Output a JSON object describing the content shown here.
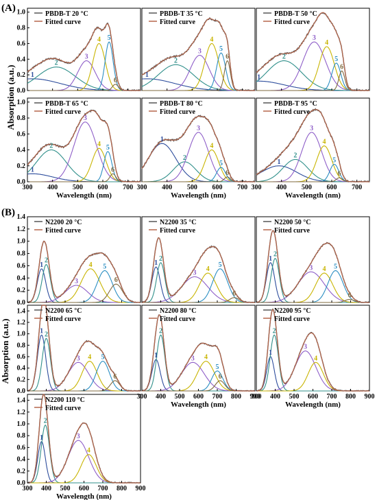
{
  "figure": {
    "section_a_label": "(A)",
    "section_b_label": "(B)",
    "ylabel": "Absorption (a.u.)",
    "xlabel": "Wavelength (nm)",
    "fitted_label": "Fitted curve",
    "colors": {
      "measured": "#555555",
      "fitted": "#b5654a",
      "peak1": "#2c4c9c",
      "peak2": "#2f8f8a",
      "peak3": "#8e5ec8",
      "peak4": "#c8b400",
      "peak5": "#2a8ec2",
      "peak6": "#7f6a3f"
    }
  },
  "chart_data": [
    {
      "type": "line",
      "group": "A",
      "title": "PBDB-T 20 °C",
      "xlabel": "Wavelength (nm)",
      "ylabel": "Absorption (a.u.)",
      "xlim": [
        300,
        750
      ],
      "ylim": [
        0,
        1.05
      ],
      "peaks": [
        {
          "label": "1",
          "center": 320,
          "amp": 0.15,
          "width": 110
        },
        {
          "label": "2",
          "center": 415,
          "amp": 0.3,
          "width": 75
        },
        {
          "label": "3",
          "center": 535,
          "amp": 0.38,
          "width": 35
        },
        {
          "label": "4",
          "center": 585,
          "amp": 0.6,
          "width": 25
        },
        {
          "label": "5",
          "center": 625,
          "amp": 0.62,
          "width": 16
        },
        {
          "label": "6",
          "center": 650,
          "amp": 0.08,
          "width": 12
        }
      ]
    },
    {
      "type": "line",
      "group": "A",
      "title": "PBDB-T 35 °C",
      "xlabel": "Wavelength (nm)",
      "ylabel": "Absorption (a.u.)",
      "xlim": [
        300,
        750
      ],
      "ylim": [
        0,
        1.05
      ],
      "peaks": [
        {
          "label": "1",
          "center": 320,
          "amp": 0.15,
          "width": 110
        },
        {
          "label": "2",
          "center": 435,
          "amp": 0.33,
          "width": 70
        },
        {
          "label": "3",
          "center": 530,
          "amp": 0.45,
          "width": 38
        },
        {
          "label": "4",
          "center": 578,
          "amp": 0.6,
          "width": 28
        },
        {
          "label": "5",
          "center": 615,
          "amp": 0.48,
          "width": 18
        },
        {
          "label": "6",
          "center": 640,
          "amp": 0.38,
          "width": 12
        }
      ]
    },
    {
      "type": "line",
      "group": "A",
      "title": "PBDB-T 50 °C",
      "xlabel": "Wavelength (nm)",
      "ylabel": "Absorption (a.u.)",
      "xlim": [
        300,
        750
      ],
      "ylim": [
        0,
        1.05
      ],
      "peaks": [
        {
          "label": "1",
          "center": 310,
          "amp": 0.12,
          "width": 100
        },
        {
          "label": "2",
          "center": 410,
          "amp": 0.38,
          "width": 70
        },
        {
          "label": "3",
          "center": 530,
          "amp": 0.62,
          "width": 45
        },
        {
          "label": "4",
          "center": 580,
          "amp": 0.56,
          "width": 30
        },
        {
          "label": "5",
          "center": 618,
          "amp": 0.35,
          "width": 18
        },
        {
          "label": "6",
          "center": 640,
          "amp": 0.25,
          "width": 12
        }
      ]
    },
    {
      "type": "line",
      "group": "A",
      "title": "PBDB-T 65 °C",
      "xlabel": "Wavelength (nm)",
      "ylabel": "Absorption (a.u.)",
      "xlim": [
        300,
        750
      ],
      "ylim": [
        0,
        1.05
      ],
      "peaks": [
        {
          "label": "1",
          "center": 320,
          "amp": 0.1,
          "width": 80
        },
        {
          "label": "2",
          "center": 395,
          "amp": 0.4,
          "width": 60
        },
        {
          "label": "3",
          "center": 530,
          "amp": 0.75,
          "width": 45
        },
        {
          "label": "4",
          "center": 585,
          "amp": 0.42,
          "width": 28
        },
        {
          "label": "5",
          "center": 620,
          "amp": 0.38,
          "width": 16
        },
        {
          "label": "6",
          "center": 640,
          "amp": 0.1,
          "width": 12
        }
      ]
    },
    {
      "type": "line",
      "group": "A",
      "title": "PBDB-T 80 °C",
      "xlabel": "Wavelength (nm)",
      "ylabel": "Absorption (a.u.)",
      "xlim": [
        300,
        750
      ],
      "ylim": [
        0,
        1.05
      ],
      "peaks": [
        {
          "label": "1",
          "center": 380,
          "amp": 0.48,
          "width": 55
        },
        {
          "label": "2",
          "center": 470,
          "amp": 0.25,
          "width": 45
        },
        {
          "label": "3",
          "center": 525,
          "amp": 0.62,
          "width": 40
        },
        {
          "label": "4",
          "center": 578,
          "amp": 0.4,
          "width": 28
        },
        {
          "label": "5",
          "center": 615,
          "amp": 0.18,
          "width": 18
        },
        {
          "label": "6",
          "center": 640,
          "amp": 0.06,
          "width": 12
        }
      ]
    },
    {
      "type": "line",
      "group": "A",
      "title": "PBDB-T 95 °C",
      "xlabel": "Wavelength (nm)",
      "ylabel": "Absorption (a.u.)",
      "xlim": [
        300,
        750
      ],
      "ylim": [
        0,
        1.05
      ],
      "peaks": [
        {
          "label": "1",
          "center": 390,
          "amp": 0.2,
          "width": 70
        },
        {
          "label": "2",
          "center": 455,
          "amp": 0.28,
          "width": 50
        },
        {
          "label": "3",
          "center": 520,
          "amp": 0.62,
          "width": 40
        },
        {
          "label": "4",
          "center": 570,
          "amp": 0.45,
          "width": 30
        },
        {
          "label": "5",
          "center": 610,
          "amp": 0.22,
          "width": 18
        },
        {
          "label": "6",
          "center": 630,
          "amp": 0.05,
          "width": 12
        }
      ]
    },
    {
      "type": "line",
      "group": "B",
      "title": "N2200 20 °C",
      "xlabel": "Wavelength (nm)",
      "ylabel": "Absorption (a.u.)",
      "xlim": [
        300,
        900
      ],
      "ylim": [
        0,
        1.4
      ],
      "peaks": [
        {
          "label": "1",
          "center": 375,
          "amp": 0.55,
          "width": 22
        },
        {
          "label": "2",
          "center": 400,
          "amp": 0.62,
          "width": 22
        },
        {
          "label": "3",
          "center": 560,
          "amp": 0.28,
          "width": 60
        },
        {
          "label": "4",
          "center": 635,
          "amp": 0.55,
          "width": 50
        },
        {
          "label": "5",
          "center": 710,
          "amp": 0.52,
          "width": 40
        },
        {
          "label": "6",
          "center": 770,
          "amp": 0.3,
          "width": 35
        }
      ]
    },
    {
      "type": "line",
      "group": "B",
      "title": "N2200 35 °C",
      "xlabel": "Wavelength (nm)",
      "ylabel": "Absorption (a.u.)",
      "xlim": [
        300,
        900
      ],
      "ylim": [
        0,
        1.4
      ],
      "peaks": [
        {
          "label": "1",
          "center": 375,
          "amp": 0.58,
          "width": 22
        },
        {
          "label": "2",
          "center": 400,
          "amp": 0.65,
          "width": 22
        },
        {
          "label": "3",
          "center": 580,
          "amp": 0.42,
          "width": 70
        },
        {
          "label": "4",
          "center": 650,
          "amp": 0.48,
          "width": 45
        },
        {
          "label": "5",
          "center": 715,
          "amp": 0.55,
          "width": 40
        },
        {
          "label": "6",
          "center": 790,
          "amp": 0.08,
          "width": 25
        }
      ]
    },
    {
      "type": "line",
      "group": "B",
      "title": "N2200 50 °C",
      "xlabel": "Wavelength (nm)",
      "ylabel": "Absorption (a.u.)",
      "xlim": [
        300,
        900
      ],
      "ylim": [
        0,
        1.4
      ],
      "peaks": [
        {
          "label": "1",
          "center": 375,
          "amp": 0.65,
          "width": 22
        },
        {
          "label": "2",
          "center": 400,
          "amp": 0.72,
          "width": 22
        },
        {
          "label": "3",
          "center": 590,
          "amp": 0.5,
          "width": 70
        },
        {
          "label": "4",
          "center": 660,
          "amp": 0.48,
          "width": 45
        },
        {
          "label": "5",
          "center": 720,
          "amp": 0.52,
          "width": 40
        },
        {
          "label": "6",
          "center": 795,
          "amp": 0.05,
          "width": 25
        }
      ]
    },
    {
      "type": "line",
      "group": "B",
      "title": "N2200 65 °C",
      "xlabel": "Wavelength (nm)",
      "ylabel": "Absorption (a.u.)",
      "xlim": [
        300,
        900
      ],
      "ylim": [
        0,
        1.5
      ],
      "peaks": [
        {
          "label": "1",
          "center": 375,
          "amp": 0.98,
          "width": 22
        },
        {
          "label": "2",
          "center": 400,
          "amp": 0.92,
          "width": 22
        },
        {
          "label": "3",
          "center": 570,
          "amp": 0.5,
          "width": 55
        },
        {
          "label": "4",
          "center": 630,
          "amp": 0.52,
          "width": 40
        },
        {
          "label": "5",
          "center": 700,
          "amp": 0.52,
          "width": 35
        },
        {
          "label": "6",
          "center": 765,
          "amp": 0.18,
          "width": 25
        }
      ]
    },
    {
      "type": "line",
      "group": "B",
      "title": "N2200 80 °C",
      "xlabel": "Wavelength (nm)",
      "ylabel": "Absorption (a.u.)",
      "xlim": [
        300,
        900
      ],
      "ylim": [
        0,
        1.5
      ],
      "peaks": [
        {
          "label": "1",
          "center": 375,
          "amp": 0.55,
          "width": 22
        },
        {
          "label": "2",
          "center": 400,
          "amp": 0.98,
          "width": 22
        },
        {
          "label": "3",
          "center": 570,
          "amp": 0.5,
          "width": 60
        },
        {
          "label": "4",
          "center": 640,
          "amp": 0.52,
          "width": 45
        },
        {
          "label": "5",
          "center": 700,
          "amp": 0.35,
          "width": 30
        },
        {
          "label": "6",
          "center": 715,
          "amp": 0.18,
          "width": 25
        }
      ]
    },
    {
      "type": "line",
      "group": "B",
      "title": "N2200 95 °C",
      "xlabel": "Wavelength (nm)",
      "ylabel": "Absorption (a.u.)",
      "xlim": [
        300,
        900
      ],
      "ylim": [
        0,
        1.5
      ],
      "peaks": [
        {
          "label": "1",
          "center": 375,
          "amp": 0.6,
          "width": 20
        },
        {
          "label": "2",
          "center": 395,
          "amp": 0.98,
          "width": 22
        },
        {
          "label": "3",
          "center": 560,
          "amp": 0.7,
          "width": 55
        },
        {
          "label": "4",
          "center": 615,
          "amp": 0.5,
          "width": 40
        }
      ]
    },
    {
      "type": "line",
      "group": "B",
      "title": "N2200 110 °C",
      "xlabel": "Wavelength (nm)",
      "ylabel": "Absorption (a.u.)",
      "xlim": [
        300,
        900
      ],
      "ylim": [
        0,
        1.5
      ],
      "peaks": [
        {
          "label": "1",
          "center": 375,
          "amp": 0.7,
          "width": 20
        },
        {
          "label": "2",
          "center": 395,
          "amp": 0.98,
          "width": 22
        },
        {
          "label": "3",
          "center": 570,
          "amp": 0.72,
          "width": 55
        },
        {
          "label": "4",
          "center": 625,
          "amp": 0.48,
          "width": 40
        }
      ]
    }
  ]
}
